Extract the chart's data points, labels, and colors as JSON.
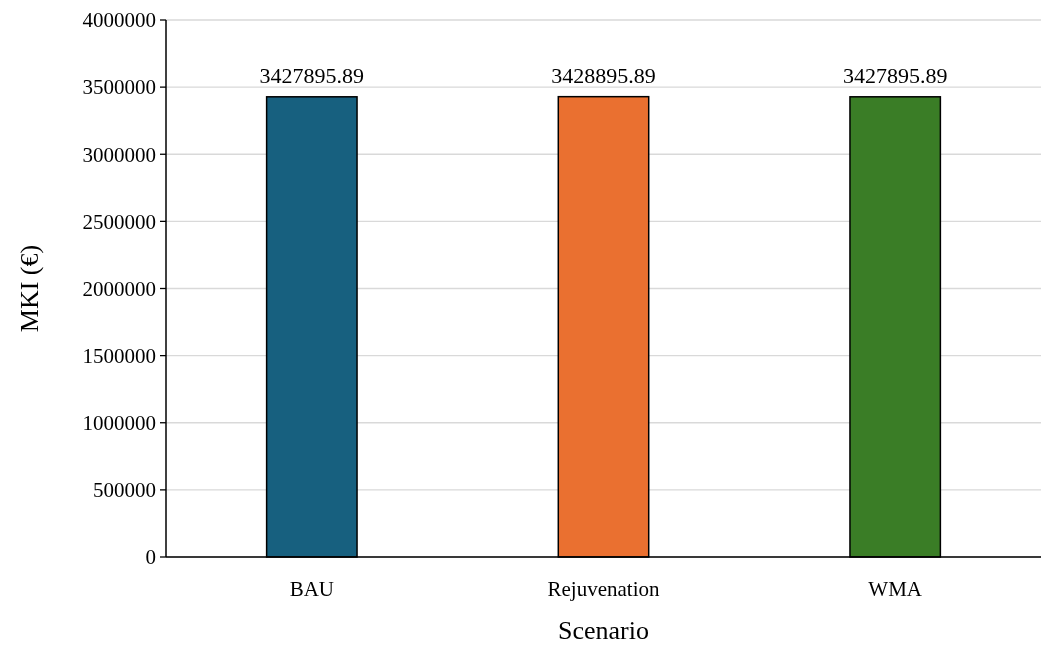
{
  "chart_data": {
    "type": "bar",
    "xlabel": "Scenario",
    "ylabel": "MKI (€)",
    "categories": [
      "BAU",
      "Rejuvenation",
      "WMA"
    ],
    "values": [
      3427895.89,
      3428895.89,
      3427895.89
    ],
    "colors": [
      "#17607f",
      "#ea7030",
      "#3a7d26"
    ],
    "ylim": [
      0,
      4000000
    ],
    "yticks": [
      0,
      500000,
      1000000,
      1500000,
      2000000,
      2500000,
      3000000,
      3500000,
      4000000
    ],
    "grid": "y",
    "data_labels": true
  }
}
